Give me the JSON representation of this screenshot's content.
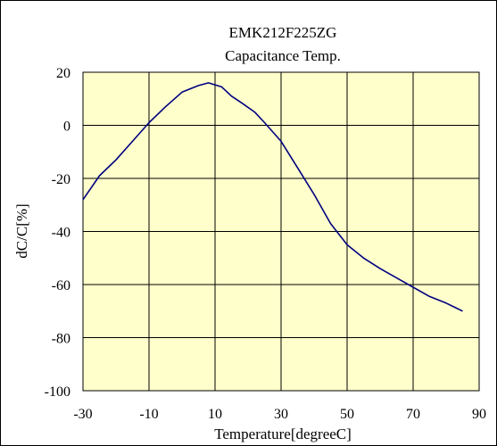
{
  "chart_data": {
    "type": "line",
    "title": "EMK212F225ZG",
    "subtitle": "Capacitance Temp.",
    "xlabel": "Temperature[degreeC]",
    "ylabel": "dC/C[%]",
    "xlim": [
      -30,
      90
    ],
    "ylim": [
      -100,
      20
    ],
    "xticks": [
      -30,
      -10,
      10,
      30,
      50,
      70,
      90
    ],
    "yticks": [
      20,
      0,
      -20,
      -40,
      -60,
      -80,
      -100
    ],
    "xtick_labels": [
      "-30",
      "-10",
      "10",
      "30",
      "50",
      "70",
      "90"
    ],
    "ytick_labels": [
      "20",
      "0",
      "-20",
      "-40",
      "-60",
      "-80",
      "-100"
    ],
    "grid": true,
    "legend": "none",
    "series": [
      {
        "color": "#000080",
        "x": [
          -30,
          -25,
          -20,
          -15,
          -10,
          -5,
          0,
          5,
          8,
          12,
          15,
          18,
          22,
          25,
          30,
          35,
          40,
          45,
          50,
          55,
          60,
          65,
          70,
          75,
          80,
          85
        ],
        "y": [
          -28,
          -19,
          -13,
          -6,
          1,
          7,
          12.5,
          15,
          16,
          14.5,
          11,
          8.5,
          5,
          1,
          -6,
          -16,
          -26,
          -37,
          -45,
          -50,
          -54,
          -57.5,
          -61,
          -64.5,
          -67,
          -70
        ]
      }
    ]
  },
  "colors": {
    "plot_background": "#ffffcc",
    "grid": "#000000",
    "line": "#000080",
    "frame": "#000000"
  }
}
